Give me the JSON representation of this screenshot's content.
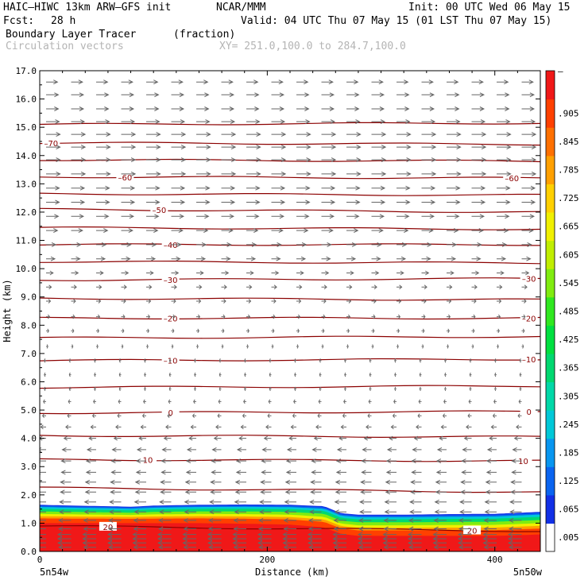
{
  "header": {
    "model": "HAIC–HIWC 13km ARW–GFS init",
    "org": "NCAR/MMM",
    "init": "Init: 00 UTC Wed 06 May 15",
    "fcst_label": "Fcst:",
    "fcst_value": "28 h",
    "valid": "Valid: 04 UTC Thu 07 May 15 (01 LST Thu 07 May 15)",
    "field": "Boundary Layer Tracer",
    "units": "(fraction)",
    "overlay": "Circulation vectors",
    "xy": "XY= 251.0,100.0 to 284.7,100.0"
  },
  "chart_data": {
    "type": "heatmap",
    "title": "Boundary Layer Tracer",
    "units": "(fraction)",
    "xlabel": "Distance (km)",
    "ylabel": "Height (km)",
    "xlim": [
      0,
      440
    ],
    "ylim": [
      0,
      17
    ],
    "x_ticks": [
      0,
      200,
      400
    ],
    "x_tick_labels": [
      "0",
      "200",
      "400"
    ],
    "y_ticks": [
      0,
      1,
      2,
      3,
      4,
      5,
      6,
      7,
      8,
      9,
      10,
      11,
      12,
      13,
      14,
      15,
      16,
      17
    ],
    "y_tick_labels": [
      "0.0",
      "1.0",
      "2.0",
      "3.0",
      "4.0",
      "5.0",
      "6.0",
      "7.0",
      "8.0",
      "9.0",
      "10.0",
      "11.0",
      "12.0",
      "13.0",
      "14.0",
      "15.0",
      "16.0",
      "17.0"
    ],
    "endpoint_labels": [
      "5n54w",
      "5n50w"
    ],
    "colorbar": {
      "labels": [
        ".005",
        ".065",
        ".125",
        ".185",
        ".245",
        ".305",
        ".365",
        ".425",
        ".485",
        ".545",
        ".605",
        ".665",
        ".725",
        ".785",
        ".845",
        ".905",
        "–"
      ],
      "colors": [
        "#ffffff",
        "#1230e6",
        "#0a64f0",
        "#0896f0",
        "#00c8d8",
        "#00d8a8",
        "#00d870",
        "#00e040",
        "#30e820",
        "#80ec10",
        "#c0ee00",
        "#f0f000",
        "#ffd000",
        "#ffa000",
        "#ff7000",
        "#ff4000",
        "#f01818"
      ]
    },
    "tracer": {
      "x": [
        0,
        30,
        60,
        80,
        100,
        140,
        180,
        220,
        250,
        265,
        280,
        320,
        360,
        400,
        440
      ],
      "top_km": [
        1.65,
        1.62,
        1.6,
        1.58,
        1.62,
        1.65,
        1.66,
        1.65,
        1.6,
        1.35,
        1.3,
        1.3,
        1.32,
        1.33,
        1.4
      ],
      "red_top_km": [
        1.0,
        1.0,
        1.0,
        1.0,
        1.0,
        1.0,
        0.98,
        0.95,
        0.85,
        0.62,
        0.55,
        0.55,
        0.55,
        0.55,
        0.6
      ]
    },
    "contours": [
      {
        "value": "20",
        "label": "20",
        "y0": 0.9,
        "y1": 0.72,
        "labels_x": [
          60,
          380
        ]
      },
      {
        "value": "",
        "label": "",
        "y0": 2.25,
        "y1": 2.1,
        "labels_x": []
      },
      {
        "value": "10",
        "label": "10",
        "y0": 3.25,
        "y1": 3.2,
        "labels_x": [
          95,
          425
        ]
      },
      {
        "value": "",
        "label": "",
        "y0": 4.1,
        "y1": 4.05,
        "labels_x": []
      },
      {
        "value": "0",
        "label": "0",
        "y0": 4.9,
        "y1": 4.95,
        "labels_x": [
          115,
          430
        ]
      },
      {
        "value": "",
        "label": "",
        "y0": 5.8,
        "y1": 5.85,
        "labels_x": []
      },
      {
        "value": "–10",
        "label": "–10",
        "y0": 6.75,
        "y1": 6.8,
        "labels_x": [
          115,
          430
        ]
      },
      {
        "value": "",
        "label": "",
        "y0": 7.55,
        "y1": 7.6,
        "labels_x": []
      },
      {
        "value": "–20",
        "label": "–20",
        "y0": 8.25,
        "y1": 8.25,
        "labels_x": [
          115,
          430
        ]
      },
      {
        "value": "",
        "label": "",
        "y0": 8.95,
        "y1": 8.9,
        "labels_x": []
      },
      {
        "value": "–30",
        "label": "–30",
        "y0": 9.6,
        "y1": 9.65,
        "labels_x": [
          115,
          430
        ]
      },
      {
        "value": "",
        "label": "",
        "y0": 10.25,
        "y1": 10.2,
        "labels_x": []
      },
      {
        "value": "–40",
        "label": "–40",
        "y0": 10.85,
        "y1": 10.85,
        "labels_x": [
          115
        ]
      },
      {
        "value": "",
        "label": "",
        "y0": 11.45,
        "y1": 11.4,
        "labels_x": []
      },
      {
        "value": "–50",
        "label": "–50",
        "y0": 12.1,
        "y1": 12.0,
        "labels_x": [
          105
        ]
      },
      {
        "value": "",
        "label": "",
        "y0": 12.65,
        "y1": 12.6,
        "labels_x": []
      },
      {
        "value": "–60",
        "label": "–60",
        "y0": 13.25,
        "y1": 13.2,
        "labels_x": [
          75,
          415
        ]
      },
      {
        "value": "",
        "label": "",
        "y0": 13.85,
        "y1": 13.8,
        "labels_x": []
      },
      {
        "value": "–70",
        "label": "–70",
        "y0": 14.45,
        "y1": 14.4,
        "labels_x": [
          10
        ]
      },
      {
        "value": "",
        "label": "",
        "y0": 15.1,
        "y1": 15.15,
        "labels_x": []
      }
    ],
    "vectors": {
      "x": [
        0,
        22,
        44,
        66,
        88,
        110,
        132,
        154,
        176,
        198,
        220,
        242,
        264,
        286,
        308,
        330,
        352,
        374,
        396,
        418
      ],
      "levels": [
        {
          "z": 0.15,
          "u": -14
        },
        {
          "z": 0.3,
          "u": -15
        },
        {
          "z": 0.45,
          "u": -15
        },
        {
          "z": 0.6,
          "u": -15
        },
        {
          "z": 0.8,
          "u": -14
        },
        {
          "z": 1.1,
          "u": -14
        },
        {
          "z": 1.4,
          "u": -13
        },
        {
          "z": 1.75,
          "u": -13
        },
        {
          "z": 2.1,
          "u": -12
        },
        {
          "z": 2.45,
          "u": -12
        },
        {
          "z": 2.8,
          "u": -11
        },
        {
          "z": 3.2,
          "u": -11
        },
        {
          "z": 3.6,
          "u": -10
        },
        {
          "z": 4.0,
          "u": -8
        },
        {
          "z": 4.4,
          "u": -6
        },
        {
          "z": 4.8,
          "u": -4
        },
        {
          "z": 5.3,
          "u": -3
        },
        {
          "z": 5.75,
          "u": -2
        },
        {
          "z": 6.25,
          "u": -2
        },
        {
          "z": 6.75,
          "u": -2
        },
        {
          "z": 7.25,
          "u": 2
        },
        {
          "z": 7.8,
          "u": 3
        },
        {
          "z": 8.3,
          "u": 4
        },
        {
          "z": 8.85,
          "u": 5
        },
        {
          "z": 9.35,
          "u": 6
        },
        {
          "z": 9.85,
          "u": 8
        },
        {
          "z": 10.35,
          "u": 10
        },
        {
          "z": 10.85,
          "u": 11
        },
        {
          "z": 11.35,
          "u": 13
        },
        {
          "z": 11.85,
          "u": 14
        },
        {
          "z": 12.35,
          "u": 15
        },
        {
          "z": 12.85,
          "u": 15
        },
        {
          "z": 13.35,
          "u": 16
        },
        {
          "z": 13.85,
          "u": 16
        },
        {
          "z": 14.3,
          "u": 16
        },
        {
          "z": 14.75,
          "u": 16
        },
        {
          "z": 15.2,
          "u": 15
        },
        {
          "z": 15.65,
          "u": 14
        },
        {
          "z": 16.15,
          "u": 14
        },
        {
          "z": 16.6,
          "u": 13
        }
      ]
    }
  }
}
